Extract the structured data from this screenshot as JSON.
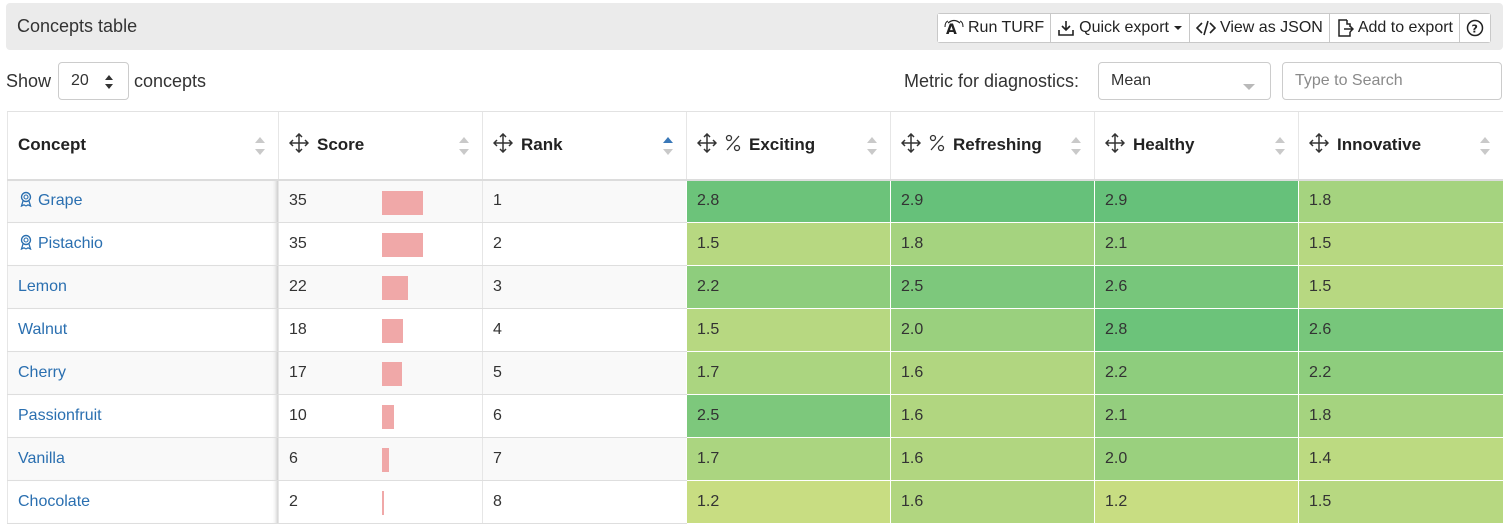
{
  "header": {
    "title": "Concepts table",
    "buttons": {
      "run_turf": "Run TURF",
      "quick_export": "Quick export",
      "view_json": "View as JSON",
      "add_export": "Add to export"
    }
  },
  "controls": {
    "show_label": "Show",
    "show_value": "20",
    "concepts_label": "concepts",
    "metric_label": "Metric for diagnostics:",
    "metric_value": "Mean",
    "search_placeholder": "Type to Search"
  },
  "table": {
    "columns": {
      "concept": "Concept",
      "score": "Score",
      "rank": "Rank",
      "exciting": "Exciting",
      "refreshing": "Refreshing",
      "healthy": "Healthy",
      "innovative": "Innovative"
    },
    "score_max": 35,
    "rows": [
      {
        "concept": "Grape",
        "icon": "award-icon",
        "score": "35",
        "rank": "1",
        "exciting": "2.8",
        "refreshing": "2.9",
        "healthy": "2.9",
        "innovative": "1.8"
      },
      {
        "concept": "Pistachio",
        "icon": "award-icon",
        "score": "35",
        "rank": "2",
        "exciting": "1.5",
        "refreshing": "1.8",
        "healthy": "2.1",
        "innovative": "1.5"
      },
      {
        "concept": "Lemon",
        "icon": "",
        "score": "22",
        "rank": "3",
        "exciting": "2.2",
        "refreshing": "2.5",
        "healthy": "2.6",
        "innovative": "1.5"
      },
      {
        "concept": "Walnut",
        "icon": "",
        "score": "18",
        "rank": "4",
        "exciting": "1.5",
        "refreshing": "2.0",
        "healthy": "2.8",
        "innovative": "2.6"
      },
      {
        "concept": "Cherry",
        "icon": "",
        "score": "17",
        "rank": "5",
        "exciting": "1.7",
        "refreshing": "1.6",
        "healthy": "2.2",
        "innovative": "2.2"
      },
      {
        "concept": "Passionfruit",
        "icon": "",
        "score": "10",
        "rank": "6",
        "exciting": "2.5",
        "refreshing": "1.6",
        "healthy": "2.1",
        "innovative": "1.8"
      },
      {
        "concept": "Vanilla",
        "icon": "",
        "score": "6",
        "rank": "7",
        "exciting": "1.7",
        "refreshing": "1.6",
        "healthy": "2.0",
        "innovative": "1.4"
      },
      {
        "concept": "Chocolate",
        "icon": "",
        "score": "2",
        "rank": "8",
        "exciting": "1.2",
        "refreshing": "1.6",
        "healthy": "1.2",
        "innovative": "1.5"
      }
    ]
  },
  "colors": {
    "link": "#2a6fb0",
    "score_bar": "#f0a8a8",
    "heat_low": "#c8dd82",
    "heat_high": "#66c17a",
    "sort_active": "#3a78b8"
  }
}
